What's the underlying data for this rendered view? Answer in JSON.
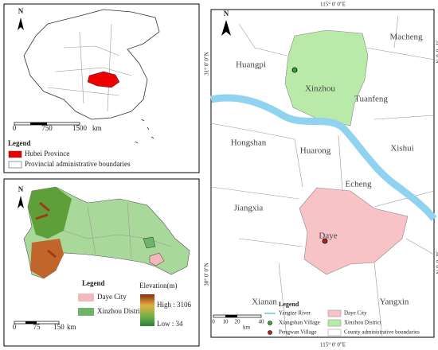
{
  "overview": {
    "north": "N",
    "scale": [
      "0",
      "750",
      "1500"
    ],
    "scale_unit": "km",
    "legend_title": "Legend",
    "legend": [
      "Hubei Province",
      "Provincial administrative boundaries"
    ]
  },
  "province": {
    "north": "N",
    "legend_title": "Legend",
    "legend": [
      "Daye City",
      "Xinzhou District"
    ],
    "elevation_title": "Elevation(m)",
    "elevation_high": "High : 3106",
    "elevation_low": "Low : 34",
    "scale": [
      "0",
      "75",
      "150"
    ],
    "scale_unit": "km"
  },
  "study_area": {
    "north": "N",
    "lon_label": "115° 0' 0\"E",
    "lat_labels": [
      "31° 0' 0\"N",
      "30° 0' 0\"N"
    ],
    "places": [
      "Macheng",
      "Huangpi",
      "Xinzhou",
      "Tuanfeng",
      "Hongshan",
      "Huarong",
      "Xishui",
      "Echeng",
      "Jiangxia",
      "Daye",
      "Xianan",
      "Yangxin"
    ],
    "scale": [
      "0",
      "10",
      "20",
      "40"
    ],
    "scale_unit": "km",
    "legend_title": "Legend",
    "legend": [
      "Yangtze River",
      "Xiangshan Village",
      "Pengwan Village",
      "Daye City",
      "Xinzhou District",
      "County administrative boundaries"
    ]
  }
}
